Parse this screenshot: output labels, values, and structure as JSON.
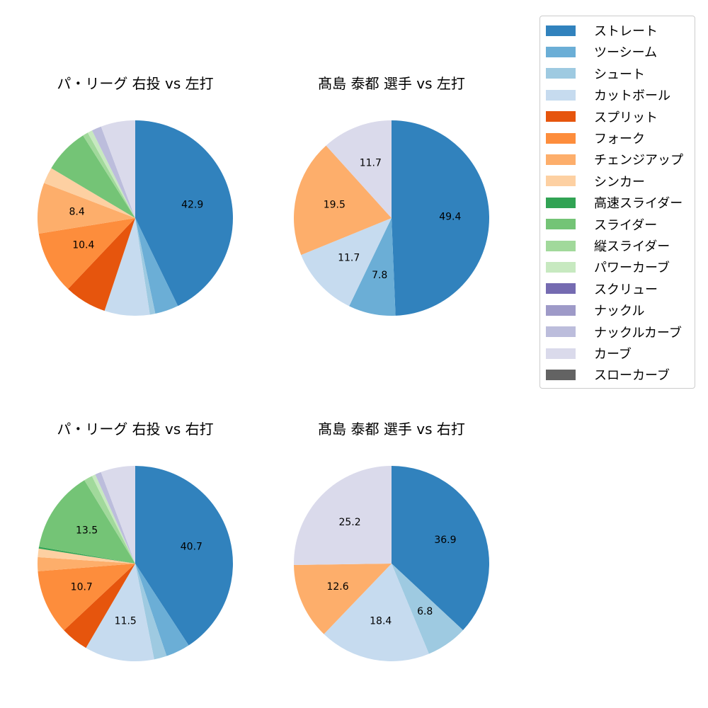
{
  "legend": {
    "items": [
      {
        "label": "ストレート",
        "color": "#3182bd"
      },
      {
        "label": "ツーシーム",
        "color": "#6baed6"
      },
      {
        "label": "シュート",
        "color": "#9ecae1"
      },
      {
        "label": "カットボール",
        "color": "#c6dbef"
      },
      {
        "label": "スプリット",
        "color": "#e6550d"
      },
      {
        "label": "フォーク",
        "color": "#fd8d3c"
      },
      {
        "label": "チェンジアップ",
        "color": "#fdae6b"
      },
      {
        "label": "シンカー",
        "color": "#fdd0a2"
      },
      {
        "label": "高速スライダー",
        "color": "#31a354"
      },
      {
        "label": "スライダー",
        "color": "#74c476"
      },
      {
        "label": "縦スライダー",
        "color": "#a1d99b"
      },
      {
        "label": "パワーカーブ",
        "color": "#c7e9c0"
      },
      {
        "label": "スクリュー",
        "color": "#756bb1"
      },
      {
        "label": "ナックル",
        "color": "#9e9ac8"
      },
      {
        "label": "ナックルカーブ",
        "color": "#bcbddc"
      },
      {
        "label": "カーブ",
        "color": "#dadaeb"
      },
      {
        "label": "スローカーブ",
        "color": "#636363"
      }
    ]
  },
  "chart_data": [
    {
      "type": "pie",
      "title": "パ・リーグ 右投 vs 左打",
      "label_threshold": 8,
      "categories": [
        "ストレート",
        "ツーシーム",
        "シュート",
        "カットボール",
        "スプリット",
        "フォーク",
        "チェンジアップ",
        "シンカー",
        "スライダー",
        "縦スライダー",
        "パワーカーブ",
        "ナックルカーブ",
        "カーブ"
      ],
      "values": [
        42.9,
        3.9,
        0.9,
        7.5,
        7.0,
        10.4,
        8.4,
        2.7,
        7.5,
        0.9,
        0.8,
        1.6,
        5.7
      ],
      "labeled_values": [
        "42.9",
        "10.4",
        "8.4"
      ]
    },
    {
      "type": "pie",
      "title": "髙島 泰都 選手 vs 左打",
      "label_threshold": 5,
      "categories": [
        "ストレート",
        "ツーシーム",
        "カットボール",
        "チェンジアップ",
        "カーブ"
      ],
      "values": [
        49.4,
        7.8,
        11.7,
        19.5,
        11.7
      ],
      "labeled_values": [
        "49.4",
        "7.8",
        "11.7",
        "19.5",
        "11.7"
      ]
    },
    {
      "type": "pie",
      "title": "パ・リーグ 右投 vs 右打",
      "label_threshold": 8,
      "categories": [
        "ストレート",
        "ツーシーム",
        "シュート",
        "カットボール",
        "スプリット",
        "フォーク",
        "チェンジアップ",
        "シンカー",
        "高速スライダー",
        "スライダー",
        "縦スライダー",
        "パワーカーブ",
        "ナックルカーブ",
        "カーブ"
      ],
      "values": [
        40.7,
        4.0,
        2.1,
        11.5,
        4.6,
        10.7,
        2.3,
        1.4,
        0.3,
        13.5,
        1.4,
        0.6,
        1.0,
        5.7
      ],
      "labeled_values": [
        "40.7",
        "11.5",
        "10.7",
        "13.5"
      ]
    },
    {
      "type": "pie",
      "title": "髙島 泰都 選手 vs 右打",
      "label_threshold": 5,
      "categories": [
        "ストレート",
        "シュート",
        "カットボール",
        "チェンジアップ",
        "カーブ"
      ],
      "values": [
        36.9,
        6.8,
        18.4,
        12.6,
        25.2
      ],
      "labeled_values": [
        "36.9",
        "6.8",
        "18.4",
        "12.6",
        "25.2"
      ]
    }
  ]
}
